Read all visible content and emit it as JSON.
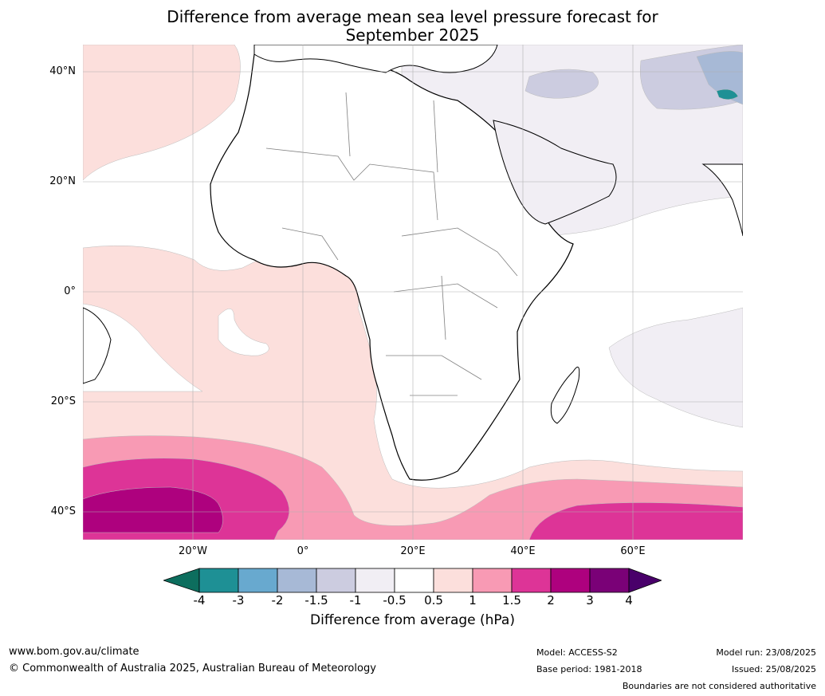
{
  "title": [
    "Difference from average mean sea level pressure forecast for",
    "September 2025"
  ],
  "map": {
    "lat_labels": [
      "40°N",
      "20°N",
      "0°",
      "20°S",
      "40°S"
    ],
    "lon_labels": [
      "20°W",
      "0°",
      "20°E",
      "40°E",
      "60°E"
    ]
  },
  "colorbar": {
    "label": "Difference from average (hPa)",
    "ticks": [
      "-4",
      "-3",
      "-2",
      "-1.5",
      "-1",
      "-0.5",
      "0.5",
      "1",
      "1.5",
      "2",
      "3",
      "4"
    ],
    "colors": [
      "#0d6e5e",
      "#1e9095",
      "#68a9cf",
      "#a7b9d6",
      "#cccce0",
      "#f1eef4",
      "#ffffff",
      "#fcdfdc",
      "#f89ab4",
      "#dd3497",
      "#ae017e",
      "#7a0177",
      "#49006a"
    ]
  },
  "footer": {
    "left_line1": "www.bom.gov.au/climate",
    "left_line2": "© Commonwealth of Australia 2025, Australian Bureau of Meteorology",
    "model": "Model: ACCESS-S2",
    "base_period": "Base period: 1981-2018",
    "model_run": "Model run: 23/08/2025",
    "issued": "Issued: 25/08/2025",
    "disclaimer": "Boundaries are not considered authoritative"
  }
}
